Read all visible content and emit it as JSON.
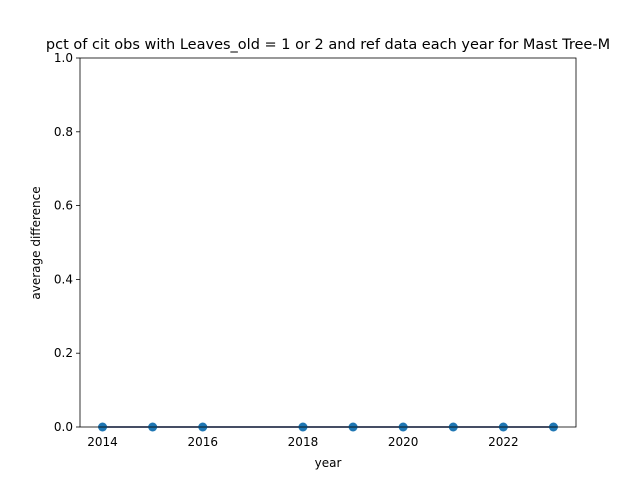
{
  "chart_data": {
    "type": "line",
    "title": "pct of cit obs with Leaves_old = 1 or 2 and ref data each year for Mast Tree-M",
    "xlabel": "year",
    "ylabel": "average difference",
    "xlim": [
      2013.55,
      2023.45
    ],
    "ylim": [
      0,
      1
    ],
    "x_ticks": [
      2014,
      2016,
      2018,
      2020,
      2022
    ],
    "y_ticks": [
      0.0,
      0.2,
      0.4,
      0.6,
      0.8,
      1.0
    ],
    "x_tick_labels": [
      "2014",
      "2016",
      "2018",
      "2020",
      "2022"
    ],
    "y_tick_labels": [
      "0.0",
      "0.2",
      "0.4",
      "0.6",
      "0.8",
      "1.0"
    ],
    "grid": false,
    "series": [
      {
        "color": "#1f77b4",
        "marker": "circle",
        "x": [
          2014,
          2015,
          2016,
          2018,
          2019,
          2020,
          2021,
          2022,
          2023
        ],
        "values": [
          0,
          0,
          0,
          0,
          0,
          0,
          0,
          0,
          0
        ]
      }
    ],
    "reference_line": {
      "y": 0,
      "color": "#d62728"
    }
  }
}
